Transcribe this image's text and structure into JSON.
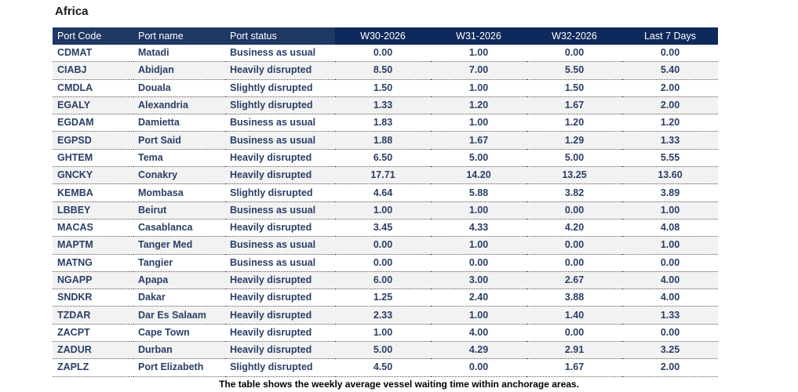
{
  "region": "Africa",
  "columns": [
    "Port Code",
    "Port name",
    "Port status",
    "W30-2026",
    "W31-2026",
    "W32-2026",
    "Last 7 Days"
  ],
  "rows": [
    [
      "CDMAT",
      "Matadi",
      "Business as usual",
      "0.00",
      "1.00",
      "0.00",
      "0.00"
    ],
    [
      "CIABJ",
      "Abidjan",
      "Heavily disrupted",
      "8.50",
      "7.00",
      "5.50",
      "5.40"
    ],
    [
      "CMDLA",
      "Douala",
      "Slightly disrupted",
      "1.50",
      "1.00",
      "1.50",
      "2.00"
    ],
    [
      "EGALY",
      "Alexandria",
      "Slightly disrupted",
      "1.33",
      "1.20",
      "1.67",
      "2.00"
    ],
    [
      "EGDAM",
      "Damietta",
      "Business as usual",
      "1.83",
      "1.00",
      "1.20",
      "1.20"
    ],
    [
      "EGPSD",
      "Port Said",
      "Business as usual",
      "1.88",
      "1.67",
      "1.29",
      "1.33"
    ],
    [
      "GHTEM",
      "Tema",
      "Heavily disrupted",
      "6.50",
      "5.00",
      "5.00",
      "5.55"
    ],
    [
      "GNCKY",
      "Conakry",
      "Heavily disrupted",
      "17.71",
      "14.20",
      "13.25",
      "13.60"
    ],
    [
      "KEMBA",
      "Mombasa",
      "Slightly disrupted",
      "4.64",
      "5.88",
      "3.82",
      "3.89"
    ],
    [
      "LBBEY",
      "Beirut",
      "Business as usual",
      "1.00",
      "1.00",
      "0.00",
      "1.00"
    ],
    [
      "MACAS",
      "Casablanca",
      "Heavily disrupted",
      "3.45",
      "4.33",
      "4.20",
      "4.08"
    ],
    [
      "MAPTM",
      "Tanger Med",
      "Business as usual",
      "0.00",
      "1.00",
      "0.00",
      "1.00"
    ],
    [
      "MATNG",
      "Tangier",
      "Business as usual",
      "0.00",
      "0.00",
      "0.00",
      "0.00"
    ],
    [
      "NGAPP",
      "Apapa",
      "Heavily disrupted",
      "6.00",
      "3.00",
      "2.67",
      "4.00"
    ],
    [
      "SNDKR",
      "Dakar",
      "Heavily disrupted",
      "1.25",
      "2.40",
      "3.88",
      "4.00"
    ],
    [
      "TZDAR",
      "Dar Es Salaam",
      "Heavily disrupted",
      "2.33",
      "1.00",
      "1.40",
      "1.33"
    ],
    [
      "ZACPT",
      "Cape Town",
      "Heavily disrupted",
      "1.00",
      "4.00",
      "0.00",
      "0.00"
    ],
    [
      "ZADUR",
      "Durban",
      "Heavily disrupted",
      "5.00",
      "4.29",
      "2.91",
      "3.25"
    ],
    [
      "ZAPLZ",
      "Port Elizabeth",
      "Slightly disrupted",
      "4.50",
      "0.00",
      "1.67",
      "2.00"
    ]
  ],
  "caption": "The table shows the weekly average vessel waiting time within anchorage areas.",
  "colors": {
    "header_dark": "#1f3864",
    "header_week": "#0e2a5c",
    "text": "#2a3f66",
    "row_alt": "#f2f2f2"
  }
}
